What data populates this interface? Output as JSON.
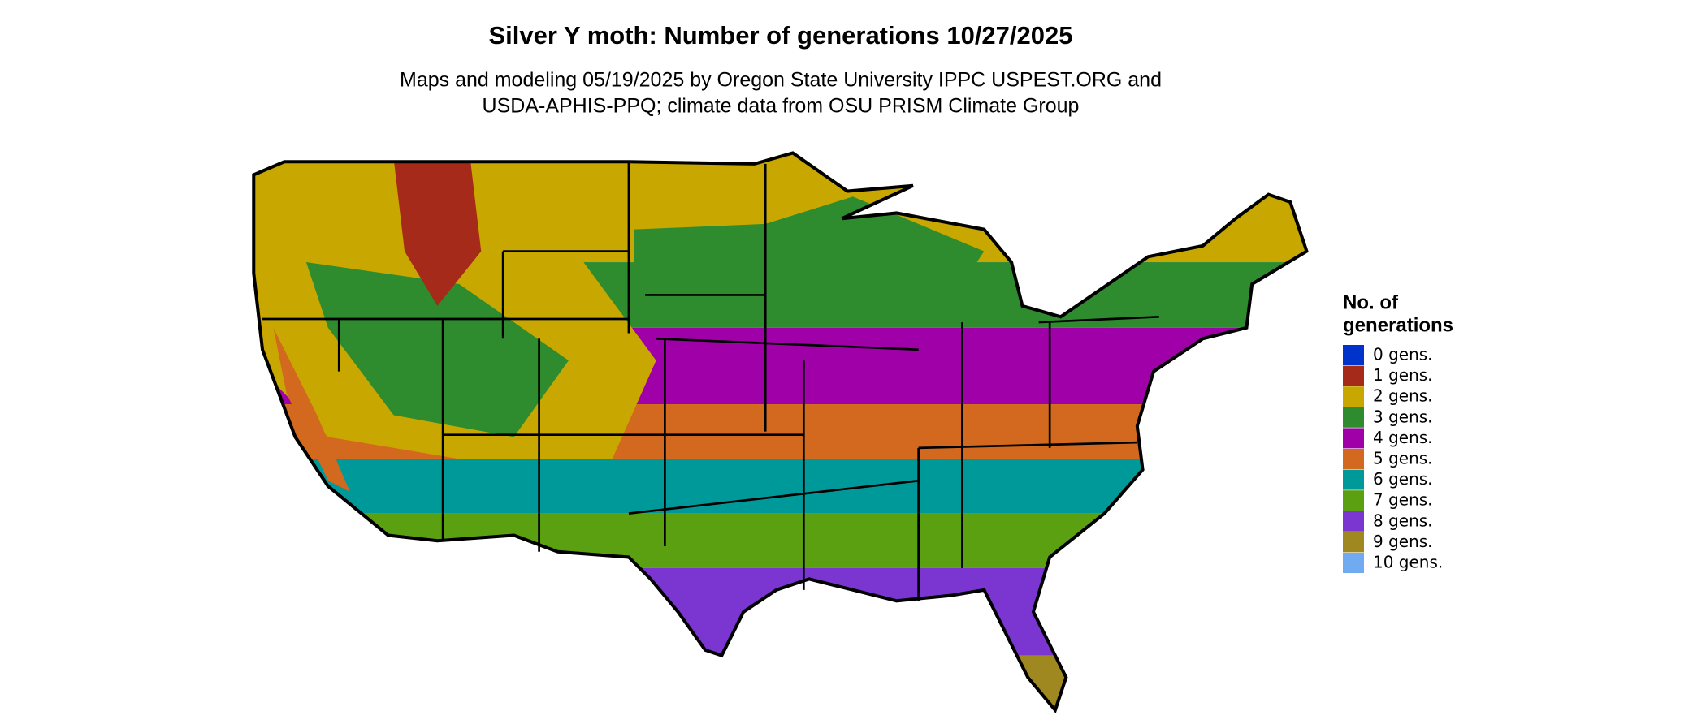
{
  "header": {
    "title": "Silver Y moth: Number of generations 10/27/2025",
    "subtitle_lines": [
      "Maps and modeling 05/19/2025 by Oregon State University IPPC USPEST.ORG and",
      "USDA-APHIS-PPQ; climate data from OSU PRISM Climate Group"
    ]
  },
  "legend": {
    "title_lines": [
      "No. of",
      "generations"
    ],
    "items": [
      {
        "label": "0 gens.",
        "color": "#0033cc"
      },
      {
        "label": "1 gens.",
        "color": "#a52a1a"
      },
      {
        "label": "2 gens.",
        "color": "#c8a800"
      },
      {
        "label": "3 gens.",
        "color": "#2e8b2e"
      },
      {
        "label": "4 gens.",
        "color": "#a000a8"
      },
      {
        "label": "5 gens.",
        "color": "#d2691e"
      },
      {
        "label": "6 gens.",
        "color": "#009999"
      },
      {
        "label": "7 gens.",
        "color": "#5aa010"
      },
      {
        "label": "8 gens.",
        "color": "#7b35d0"
      },
      {
        "label": "9 gens.",
        "color": "#a08820"
      },
      {
        "label": "10 gens.",
        "color": "#70aaf0"
      }
    ]
  }
}
